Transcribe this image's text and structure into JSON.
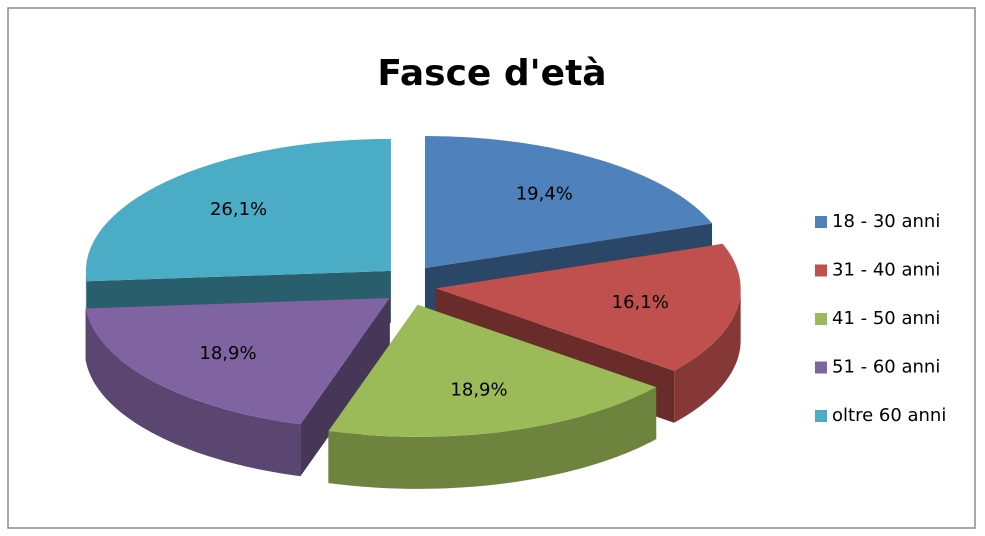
{
  "chart_data": {
    "type": "pie",
    "title": "Fasce d'età",
    "categories": [
      "18 - 30 anni",
      "31 - 40 anni",
      "41 - 50 anni",
      "51 - 60 anni",
      "oltre 60 anni"
    ],
    "values": [
      19.4,
      16.1,
      18.9,
      18.9,
      26.1
    ],
    "value_labels": [
      "19,4%",
      "16,1%",
      "18,9%",
      "18,9%",
      "26,1%"
    ],
    "colors": [
      "#4f81bd",
      "#c0504d",
      "#9bbb59",
      "#8064a2",
      "#4bacc6"
    ],
    "legend": "right"
  }
}
